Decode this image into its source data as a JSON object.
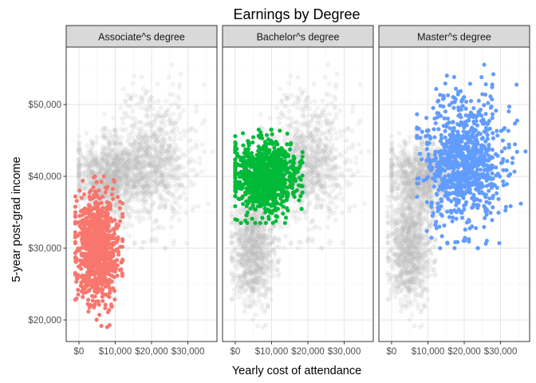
{
  "chart_data": {
    "type": "scatter",
    "title": "Earnings by Degree",
    "xlabel": "Yearly cost of attendance",
    "ylabel": "5-year post-grad income",
    "xlim": [
      -3500,
      38000
    ],
    "ylim": [
      17000,
      58000
    ],
    "x_ticks": [
      0,
      10000,
      20000,
      30000
    ],
    "x_tick_labels": [
      "$0",
      "$10,000",
      "$20,000",
      "$30,000"
    ],
    "y_ticks": [
      20000,
      30000,
      40000,
      50000
    ],
    "y_tick_labels": [
      "$20,000",
      "$30,000",
      "$40,000",
      "$50,000"
    ],
    "grid": true,
    "legend": "none",
    "background_points_color": "#bebebe",
    "facets": [
      {
        "label": "Associate^s degree",
        "color": "#F8766D",
        "cluster": {
          "x_center": 5000,
          "x_spread": 3000,
          "y_center": 30000,
          "y_spread": 4000,
          "x_range": [
            -1000,
            12000
          ],
          "y_range": [
            19000,
            40000
          ]
        }
      },
      {
        "label": "Bachelor^s degree",
        "color": "#00BA38",
        "cluster": {
          "x_center": 8000,
          "x_spread": 4500,
          "y_center": 40000,
          "y_spread": 2500,
          "x_range": [
            0,
            18500
          ],
          "y_range": [
            33500,
            46500
          ]
        }
      },
      {
        "label": "Master^s degree",
        "color": "#619CFF",
        "cluster": {
          "x_center": 20000,
          "x_spread": 5500,
          "y_center": 42000,
          "y_spread": 4500,
          "x_range": [
            7000,
            37000
          ],
          "y_range": [
            30000,
            56000
          ]
        }
      }
    ]
  }
}
